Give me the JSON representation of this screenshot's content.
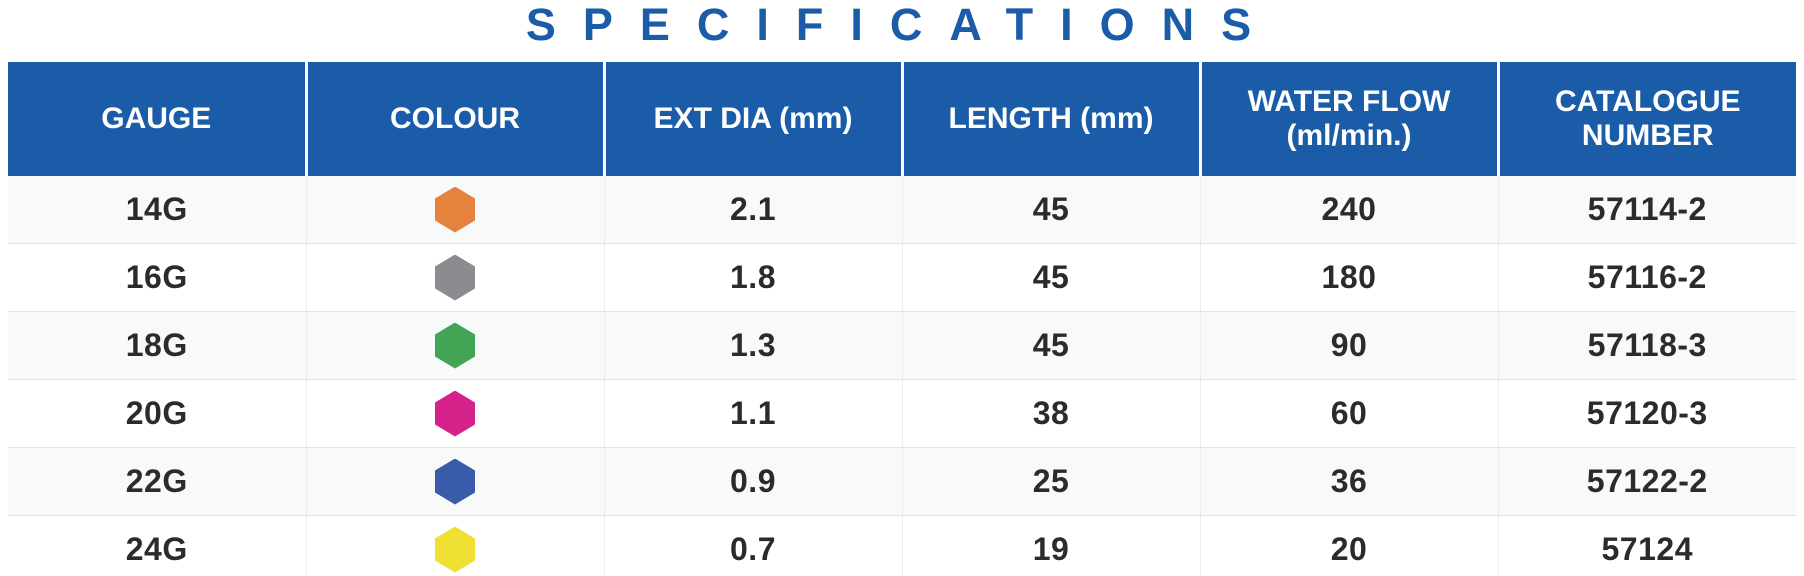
{
  "title": "SPECIFICATIONS",
  "colors": {
    "header_background": "#1a5ca8",
    "title_text": "#1a5ca8",
    "header_text": "#ffffff",
    "body_text": "#2b2b2b",
    "row_separator": "#e3e3e3",
    "column_separator": "#ededed"
  },
  "table": {
    "columns": [
      {
        "key": "gauge",
        "label": "GAUGE"
      },
      {
        "key": "colour",
        "label": "COLOUR"
      },
      {
        "key": "ext_dia",
        "label": "EXT DIA (mm)"
      },
      {
        "key": "length",
        "label": "LENGTH (mm)"
      },
      {
        "key": "water_flow",
        "label": "WATER FLOW (ml/min.)"
      },
      {
        "key": "catalogue",
        "label": "CATALOGUE NUMBER"
      }
    ],
    "rows": [
      {
        "gauge": "14G",
        "colour_name": "orange",
        "colour_hex": "#e5823d",
        "ext_dia": "2.1",
        "length": "45",
        "water_flow": "240",
        "catalogue": "57114-2"
      },
      {
        "gauge": "16G",
        "colour_name": "grey",
        "colour_hex": "#8c8c90",
        "ext_dia": "1.8",
        "length": "45",
        "water_flow": "180",
        "catalogue": "57116-2"
      },
      {
        "gauge": "18G",
        "colour_name": "green",
        "colour_hex": "#42a556",
        "ext_dia": "1.3",
        "length": "45",
        "water_flow": "90",
        "catalogue": "57118-3"
      },
      {
        "gauge": "20G",
        "colour_name": "pink",
        "colour_hex": "#d4228a",
        "ext_dia": "1.1",
        "length": "38",
        "water_flow": "60",
        "catalogue": "57120-3"
      },
      {
        "gauge": "22G",
        "colour_name": "blue",
        "colour_hex": "#3a5ba9",
        "ext_dia": "0.9",
        "length": "25",
        "water_flow": "36",
        "catalogue": "57122-2"
      },
      {
        "gauge": "24G",
        "colour_name": "yellow",
        "colour_hex": "#f0e034",
        "ext_dia": "0.7",
        "length": "19",
        "water_flow": "20",
        "catalogue": "57124"
      }
    ]
  }
}
